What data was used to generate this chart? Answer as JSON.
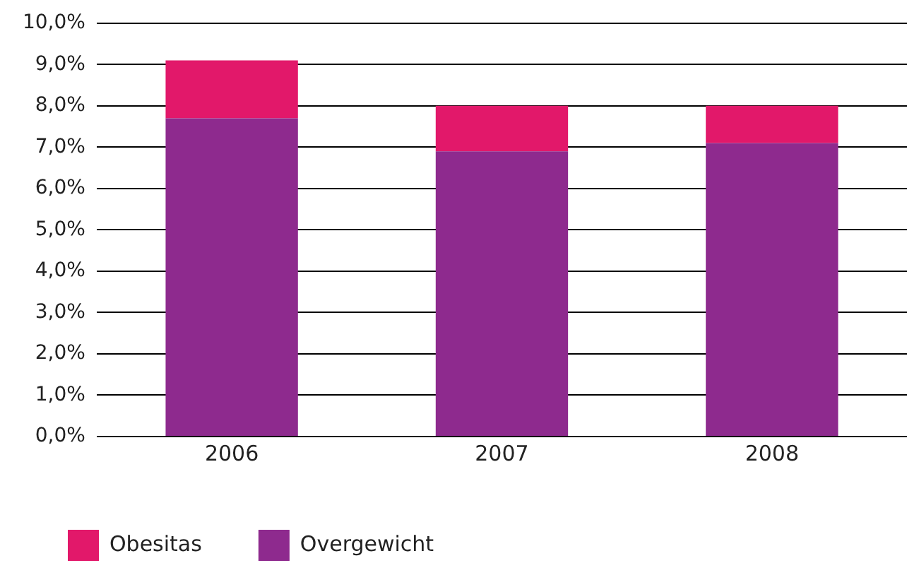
{
  "chart_data": {
    "type": "bar",
    "stacked": true,
    "categories": [
      "2006",
      "2007",
      "2008"
    ],
    "series": [
      {
        "name": "Overgewicht",
        "color": "#8e2a8e",
        "values": [
          7.7,
          6.9,
          7.1
        ]
      },
      {
        "name": "Obesitas",
        "color": "#e2186a",
        "values": [
          1.4,
          1.1,
          0.9
        ]
      }
    ],
    "ylim": [
      0,
      10
    ],
    "yticks": [
      {
        "value": 0,
        "label": "0,0%"
      },
      {
        "value": 1,
        "label": "1,0%"
      },
      {
        "value": 2,
        "label": "2,0%"
      },
      {
        "value": 3,
        "label": "3,0%"
      },
      {
        "value": 4,
        "label": "4,0%"
      },
      {
        "value": 5,
        "label": "5,0%"
      },
      {
        "value": 6,
        "label": "6,0%"
      },
      {
        "value": 7,
        "label": "7,0%"
      },
      {
        "value": 8,
        "label": "8,0%"
      },
      {
        "value": 9,
        "label": "9,0%"
      },
      {
        "value": 10,
        "label": "10,0%"
      }
    ],
    "grid": "y",
    "legend": "bottom left"
  }
}
